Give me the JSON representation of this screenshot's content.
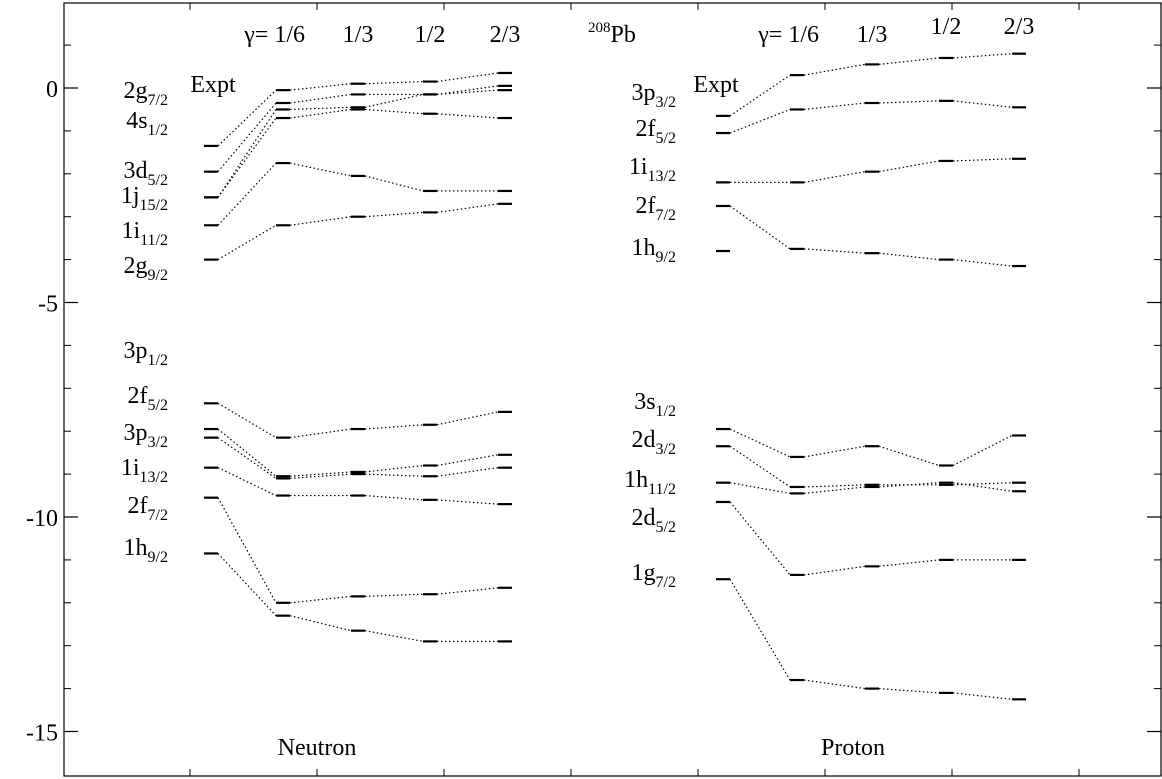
{
  "chart_data": {
    "type": "scatter",
    "title": "",
    "nucleus": {
      "mass_number": "208",
      "symbol": "Pb"
    },
    "ylabel": "",
    "ylim": [
      -16,
      2
    ],
    "yticks": [
      0,
      -5,
      -10,
      -15
    ],
    "yticks_minor": [
      1,
      -1,
      -2,
      -3,
      -4,
      -6,
      -7,
      -8,
      -9,
      -11,
      -12,
      -13,
      -14
    ],
    "columns": [
      {
        "label": "Expt"
      },
      {
        "label": "1/6",
        "prefix": "γ= "
      },
      {
        "label": "1/3"
      },
      {
        "label": "1/2"
      },
      {
        "label": "2/3"
      }
    ],
    "panels": [
      {
        "name": "Neutron",
        "states": [
          {
            "n": "2",
            "l": "g",
            "j": "7/2",
            "values": [
              -1.35,
              -0.05,
              0.1,
              0.15,
              0.35
            ]
          },
          {
            "n": "4",
            "l": "s",
            "j": "1/2",
            "values": [
              -1.95,
              -0.35,
              -0.15,
              -0.15,
              0.05
            ]
          },
          {
            "n": "3",
            "l": "d",
            "j": "5/2",
            "values": [
              -2.55,
              -0.5,
              -0.45,
              -0.15,
              -0.05
            ]
          },
          {
            "n": "1",
            "l": "j",
            "j": "15/2",
            "values": [
              -2.55,
              -0.7,
              -0.5,
              -0.6,
              -0.7
            ]
          },
          {
            "n": "1",
            "l": "i",
            "j": "11/2",
            "values": [
              -3.2,
              -1.75,
              -2.05,
              -2.4,
              -2.4
            ]
          },
          {
            "n": "2",
            "l": "g",
            "j": "9/2",
            "values": [
              -4.0,
              -3.2,
              -3.0,
              -2.9,
              -2.7
            ]
          },
          {
            "n": "3",
            "l": "p",
            "j": "1/2",
            "values": [
              -7.35,
              -8.15,
              -7.95,
              -7.85,
              -7.55
            ]
          },
          {
            "n": "2",
            "l": "f",
            "j": "5/2",
            "values": [
              -7.95,
              -9.05,
              -8.95,
              -8.8,
              -8.55
            ]
          },
          {
            "n": "3",
            "l": "p",
            "j": "3/2",
            "values": [
              -8.15,
              -9.1,
              -9.0,
              -9.05,
              -8.85
            ]
          },
          {
            "n": "1",
            "l": "i",
            "j": "13/2",
            "values": [
              -8.85,
              -9.5,
              -9.5,
              -9.6,
              -9.7
            ]
          },
          {
            "n": "2",
            "l": "f",
            "j": "7/2",
            "values": [
              -9.55,
              -12.0,
              -11.85,
              -11.8,
              -11.65
            ]
          },
          {
            "n": "1",
            "l": "h",
            "j": "9/2",
            "values": [
              -10.85,
              -12.3,
              -12.65,
              -12.9,
              -12.9
            ]
          }
        ]
      },
      {
        "name": "Proton",
        "states": [
          {
            "n": "3",
            "l": "p",
            "j": "3/2",
            "values": [
              -0.65,
              0.3,
              0.55,
              0.7,
              0.8
            ]
          },
          {
            "n": "2",
            "l": "f",
            "j": "5/2",
            "values": [
              -1.05,
              -0.5,
              -0.35,
              -0.3,
              -0.45
            ]
          },
          {
            "n": "1",
            "l": "i",
            "j": "13/2",
            "values": [
              -2.2,
              -2.2,
              -1.95,
              -1.7,
              -1.65
            ]
          },
          {
            "n": "2",
            "l": "f",
            "j": "7/2",
            "values": [
              -2.75,
              -3.75,
              -3.85,
              -4.0,
              -4.15
            ]
          },
          {
            "n": "1",
            "l": "h",
            "j": "9/2",
            "values": [
              -3.8,
              null,
              null,
              null,
              null
            ]
          },
          {
            "n": "3",
            "l": "s",
            "j": "1/2",
            "values": [
              -7.95,
              -8.6,
              -8.35,
              -8.8,
              -8.1
            ]
          },
          {
            "n": "2",
            "l": "d",
            "j": "3/2",
            "values": [
              -8.35,
              -9.3,
              -9.25,
              -9.25,
              -9.2
            ]
          },
          {
            "n": "1",
            "l": "h",
            "j": "11/2",
            "values": [
              -9.2,
              -9.45,
              -9.3,
              -9.2,
              -9.4
            ]
          },
          {
            "n": "2",
            "l": "d",
            "j": "5/2",
            "values": [
              -9.65,
              -11.35,
              -11.15,
              -11.0,
              -11.0
            ]
          },
          {
            "n": "1",
            "l": "g",
            "j": "7/2",
            "values": [
              -11.45,
              -13.8,
              -14.0,
              -14.1,
              -14.25
            ]
          }
        ]
      }
    ],
    "grid": false,
    "legend": "none"
  }
}
